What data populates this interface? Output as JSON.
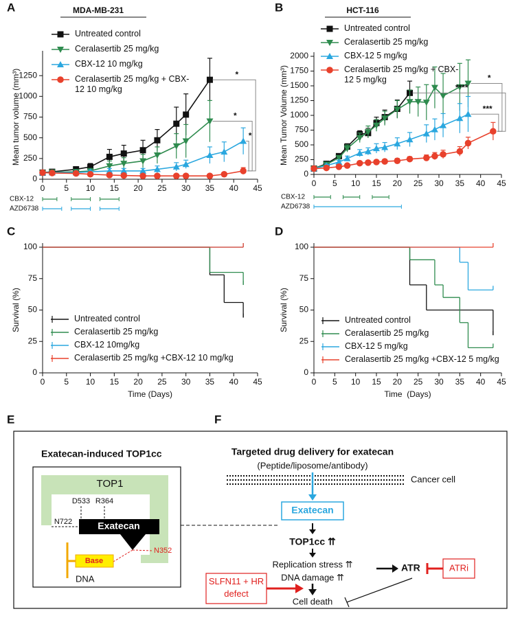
{
  "chart_data": [
    {
      "type": "line",
      "panel": "A",
      "title": "MDA-MB-231",
      "ylabel": "Mean tumor volume (mm³)",
      "xlim": [
        0,
        45
      ],
      "xticks": [
        0,
        5,
        10,
        15,
        20,
        25,
        30,
        35,
        40,
        45
      ],
      "ylim": [
        0,
        1500
      ],
      "yticks": [
        0,
        250,
        500,
        750,
        1000,
        1250
      ],
      "legend": "upper left",
      "series": [
        {
          "name": "Untreated control",
          "color": "#111111",
          "marker": "square",
          "x": [
            0,
            2,
            7,
            10,
            14,
            17,
            21,
            24,
            28,
            30,
            35
          ],
          "values": [
            80,
            90,
            120,
            150,
            270,
            310,
            350,
            470,
            670,
            780,
            1200
          ],
          "errors": [
            20,
            20,
            30,
            40,
            90,
            100,
            120,
            130,
            200,
            250,
            260
          ]
        },
        {
          "name": "Ceralasertib 25 mg/kg",
          "color": "#2e8b4e",
          "marker": "triangle-down",
          "x": [
            0,
            2,
            7,
            10,
            14,
            17,
            21,
            24,
            28,
            30,
            35
          ],
          "values": [
            80,
            85,
            90,
            100,
            160,
            190,
            220,
            290,
            400,
            460,
            700
          ],
          "errors": [
            20,
            20,
            20,
            30,
            60,
            70,
            80,
            100,
            150,
            200,
            250
          ]
        },
        {
          "name": "CBX-12 10 mg/kg",
          "color": "#2aa7df",
          "marker": "triangle-up",
          "x": [
            0,
            2,
            7,
            10,
            14,
            17,
            21,
            24,
            28,
            30,
            35,
            38,
            42
          ],
          "values": [
            80,
            80,
            80,
            90,
            100,
            100,
            100,
            120,
            150,
            180,
            290,
            330,
            460
          ],
          "errors": [
            15,
            15,
            20,
            20,
            30,
            30,
            30,
            40,
            50,
            50,
            100,
            120,
            160
          ]
        },
        {
          "name": "Ceralasertib 25 mg/kg + CBX-12 10 mg/kg",
          "color": "#e8412c",
          "marker": "circle",
          "x": [
            0,
            2,
            7,
            10,
            14,
            17,
            21,
            24,
            28,
            30,
            35,
            38,
            42
          ],
          "values": [
            80,
            75,
            70,
            60,
            50,
            45,
            40,
            40,
            40,
            40,
            40,
            60,
            100
          ],
          "errors": [
            15,
            15,
            15,
            10,
            10,
            10,
            10,
            10,
            10,
            10,
            10,
            20,
            40
          ]
        }
      ],
      "annotations": [
        "*",
        "*",
        "*"
      ],
      "schedule": [
        {
          "name": "CBX-12",
          "color": "#2e8b4e",
          "intervals": [
            [
              0,
              3
            ],
            [
              6,
              10
            ],
            [
              12,
              16
            ]
          ]
        },
        {
          "name": "AZD6738",
          "color": "#2aa7df",
          "intervals": [
            [
              0,
              4
            ],
            [
              6,
              10
            ],
            [
              12,
              16
            ]
          ]
        }
      ]
    },
    {
      "type": "line",
      "panel": "B",
      "title": "HCT-116",
      "ylabel": "Mean Tumor Volume (mm³)",
      "xlim": [
        0,
        45
      ],
      "xticks": [
        0,
        5,
        10,
        15,
        20,
        25,
        30,
        35,
        40,
        45
      ],
      "ylim": [
        0,
        2000
      ],
      "yticks": [
        0,
        250,
        500,
        750,
        1000,
        1250,
        1500,
        1750,
        2000
      ],
      "legend": "upper left",
      "series": [
        {
          "name": "Untreated control",
          "color": "#111111",
          "marker": "square",
          "x": [
            0,
            3,
            6,
            8,
            11,
            13,
            15,
            17,
            20,
            23
          ],
          "values": [
            100,
            180,
            310,
            470,
            680,
            700,
            870,
            970,
            1110,
            1380
          ],
          "errors": [
            15,
            25,
            40,
            50,
            60,
            80,
            100,
            120,
            150,
            200
          ]
        },
        {
          "name": "Ceralasertib 25 mg/kg",
          "color": "#2e8b4e",
          "marker": "triangle-down",
          "x": [
            0,
            3,
            6,
            8,
            11,
            13,
            15,
            17,
            20,
            23,
            25,
            27,
            29,
            31,
            35,
            37
          ],
          "values": [
            100,
            170,
            280,
            440,
            620,
            720,
            830,
            950,
            1100,
            1230,
            1230,
            1220,
            1470,
            1330,
            1480,
            1540
          ],
          "errors": [
            15,
            25,
            40,
            60,
            80,
            100,
            100,
            120,
            150,
            200,
            250,
            300,
            350,
            380,
            400,
            400
          ]
        },
        {
          "name": "CBX-12 5 mg/kg",
          "color": "#2aa7df",
          "marker": "triangle-up",
          "x": [
            0,
            3,
            6,
            8,
            11,
            13,
            15,
            17,
            20,
            23,
            27,
            29,
            31,
            35,
            37
          ],
          "values": [
            100,
            150,
            210,
            270,
            360,
            390,
            440,
            460,
            520,
            590,
            690,
            760,
            830,
            950,
            1020
          ],
          "errors": [
            15,
            25,
            30,
            40,
            60,
            60,
            80,
            80,
            100,
            120,
            150,
            180,
            200,
            250,
            300
          ]
        },
        {
          "name": "Ceralasertib 25 mg/kg + CBX-12 5 mg/kg",
          "color": "#e8412c",
          "marker": "circle",
          "x": [
            0,
            3,
            6,
            8,
            11,
            13,
            15,
            17,
            20,
            23,
            27,
            29,
            31,
            35,
            37,
            43
          ],
          "values": [
            100,
            110,
            130,
            150,
            190,
            200,
            210,
            220,
            230,
            260,
            280,
            310,
            340,
            390,
            530,
            730
          ],
          "errors": [
            15,
            15,
            20,
            20,
            30,
            30,
            30,
            30,
            40,
            40,
            50,
            60,
            70,
            80,
            100,
            150
          ]
        }
      ],
      "annotations": [
        "****",
        "*",
        "***"
      ],
      "schedule": [
        {
          "name": "CBX-12",
          "color": "#2e8b4e",
          "intervals": [
            [
              0,
              4
            ],
            [
              7,
              11
            ],
            [
              14,
              18
            ]
          ]
        },
        {
          "name": "AZD6738",
          "color": "#2aa7df",
          "intervals": [
            [
              0,
              21
            ]
          ]
        }
      ]
    },
    {
      "type": "step",
      "panel": "C",
      "ylabel": "Survival (%)",
      "xlabel": "Time (Days)",
      "xlim": [
        0,
        45
      ],
      "xticks": [
        0,
        5,
        10,
        15,
        20,
        25,
        30,
        35,
        40,
        45
      ],
      "ylim": [
        0,
        100
      ],
      "yticks": [
        0,
        25,
        50,
        75,
        100
      ],
      "legend": "lower left",
      "series": [
        {
          "name": "Untreated control",
          "color": "#111111",
          "x": [
            0,
            35,
            38,
            42
          ],
          "values": [
            100,
            78,
            56,
            44
          ]
        },
        {
          "name": "Ceralasertib 25 mg/kg",
          "color": "#2e8b4e",
          "x": [
            0,
            35,
            42
          ],
          "values": [
            100,
            80,
            70
          ]
        },
        {
          "name": "CBX-12 10mg/kg",
          "color": "#2aa7df",
          "x": [
            0,
            42
          ],
          "values": [
            100,
            100
          ]
        },
        {
          "name": "Ceralasertib 25 mg/kg +CBX-12 10 mg/kg",
          "color": "#e8412c",
          "x": [
            0,
            42
          ],
          "values": [
            100,
            100
          ]
        }
      ]
    },
    {
      "type": "step",
      "panel": "D",
      "ylabel": "Survival (%)",
      "xlabel": "Time  (Days)",
      "xlim": [
        0,
        45
      ],
      "xticks": [
        0,
        5,
        10,
        15,
        20,
        25,
        30,
        35,
        40,
        45
      ],
      "ylim": [
        0,
        100
      ],
      "yticks": [
        0,
        25,
        50,
        75,
        100
      ],
      "legend": "lower left",
      "series": [
        {
          "name": "Untreated control",
          "color": "#111111",
          "x": [
            0,
            23,
            27,
            43
          ],
          "values": [
            100,
            70,
            50,
            30
          ]
        },
        {
          "name": "Ceralasertib 25 mg/kg",
          "color": "#2e8b4e",
          "x": [
            0,
            23,
            29,
            31,
            35,
            37,
            43
          ],
          "values": [
            100,
            90,
            70,
            60,
            40,
            20,
            20
          ]
        },
        {
          "name": "CBX-12 5 mg/kg",
          "color": "#2aa7df",
          "x": [
            0,
            35,
            37,
            43
          ],
          "values": [
            100,
            88,
            66,
            66
          ]
        },
        {
          "name": "Ceralasertib 25 mg/kg +CBX-12 5 mg/kg",
          "color": "#e8412c",
          "x": [
            0,
            43
          ],
          "values": [
            100,
            100
          ]
        }
      ]
    }
  ],
  "panel_e": {
    "letter": "E",
    "title": "Exatecan-induced TOP1cc",
    "protein": "TOP1",
    "residues": [
      "D533",
      "R364",
      "N722",
      "N352"
    ],
    "drug": "Exatecan",
    "base": "Base",
    "dna": "DNA"
  },
  "panel_f": {
    "letter": "F",
    "title": "Targeted drug delivery for exatecan",
    "subtitle": "(Peptide/liposome/antibody)",
    "membrane": "Cancer cell",
    "drug": "Exatecan",
    "complex": "TOP1cc ⇈",
    "stress": "Replication stress ⇈",
    "damage": "DNA damage ⇈",
    "kinase": "ATR",
    "inhibitor": "ATRi",
    "sensitizer": "SLFN11 + HR defect",
    "outcome": "Cell death"
  }
}
